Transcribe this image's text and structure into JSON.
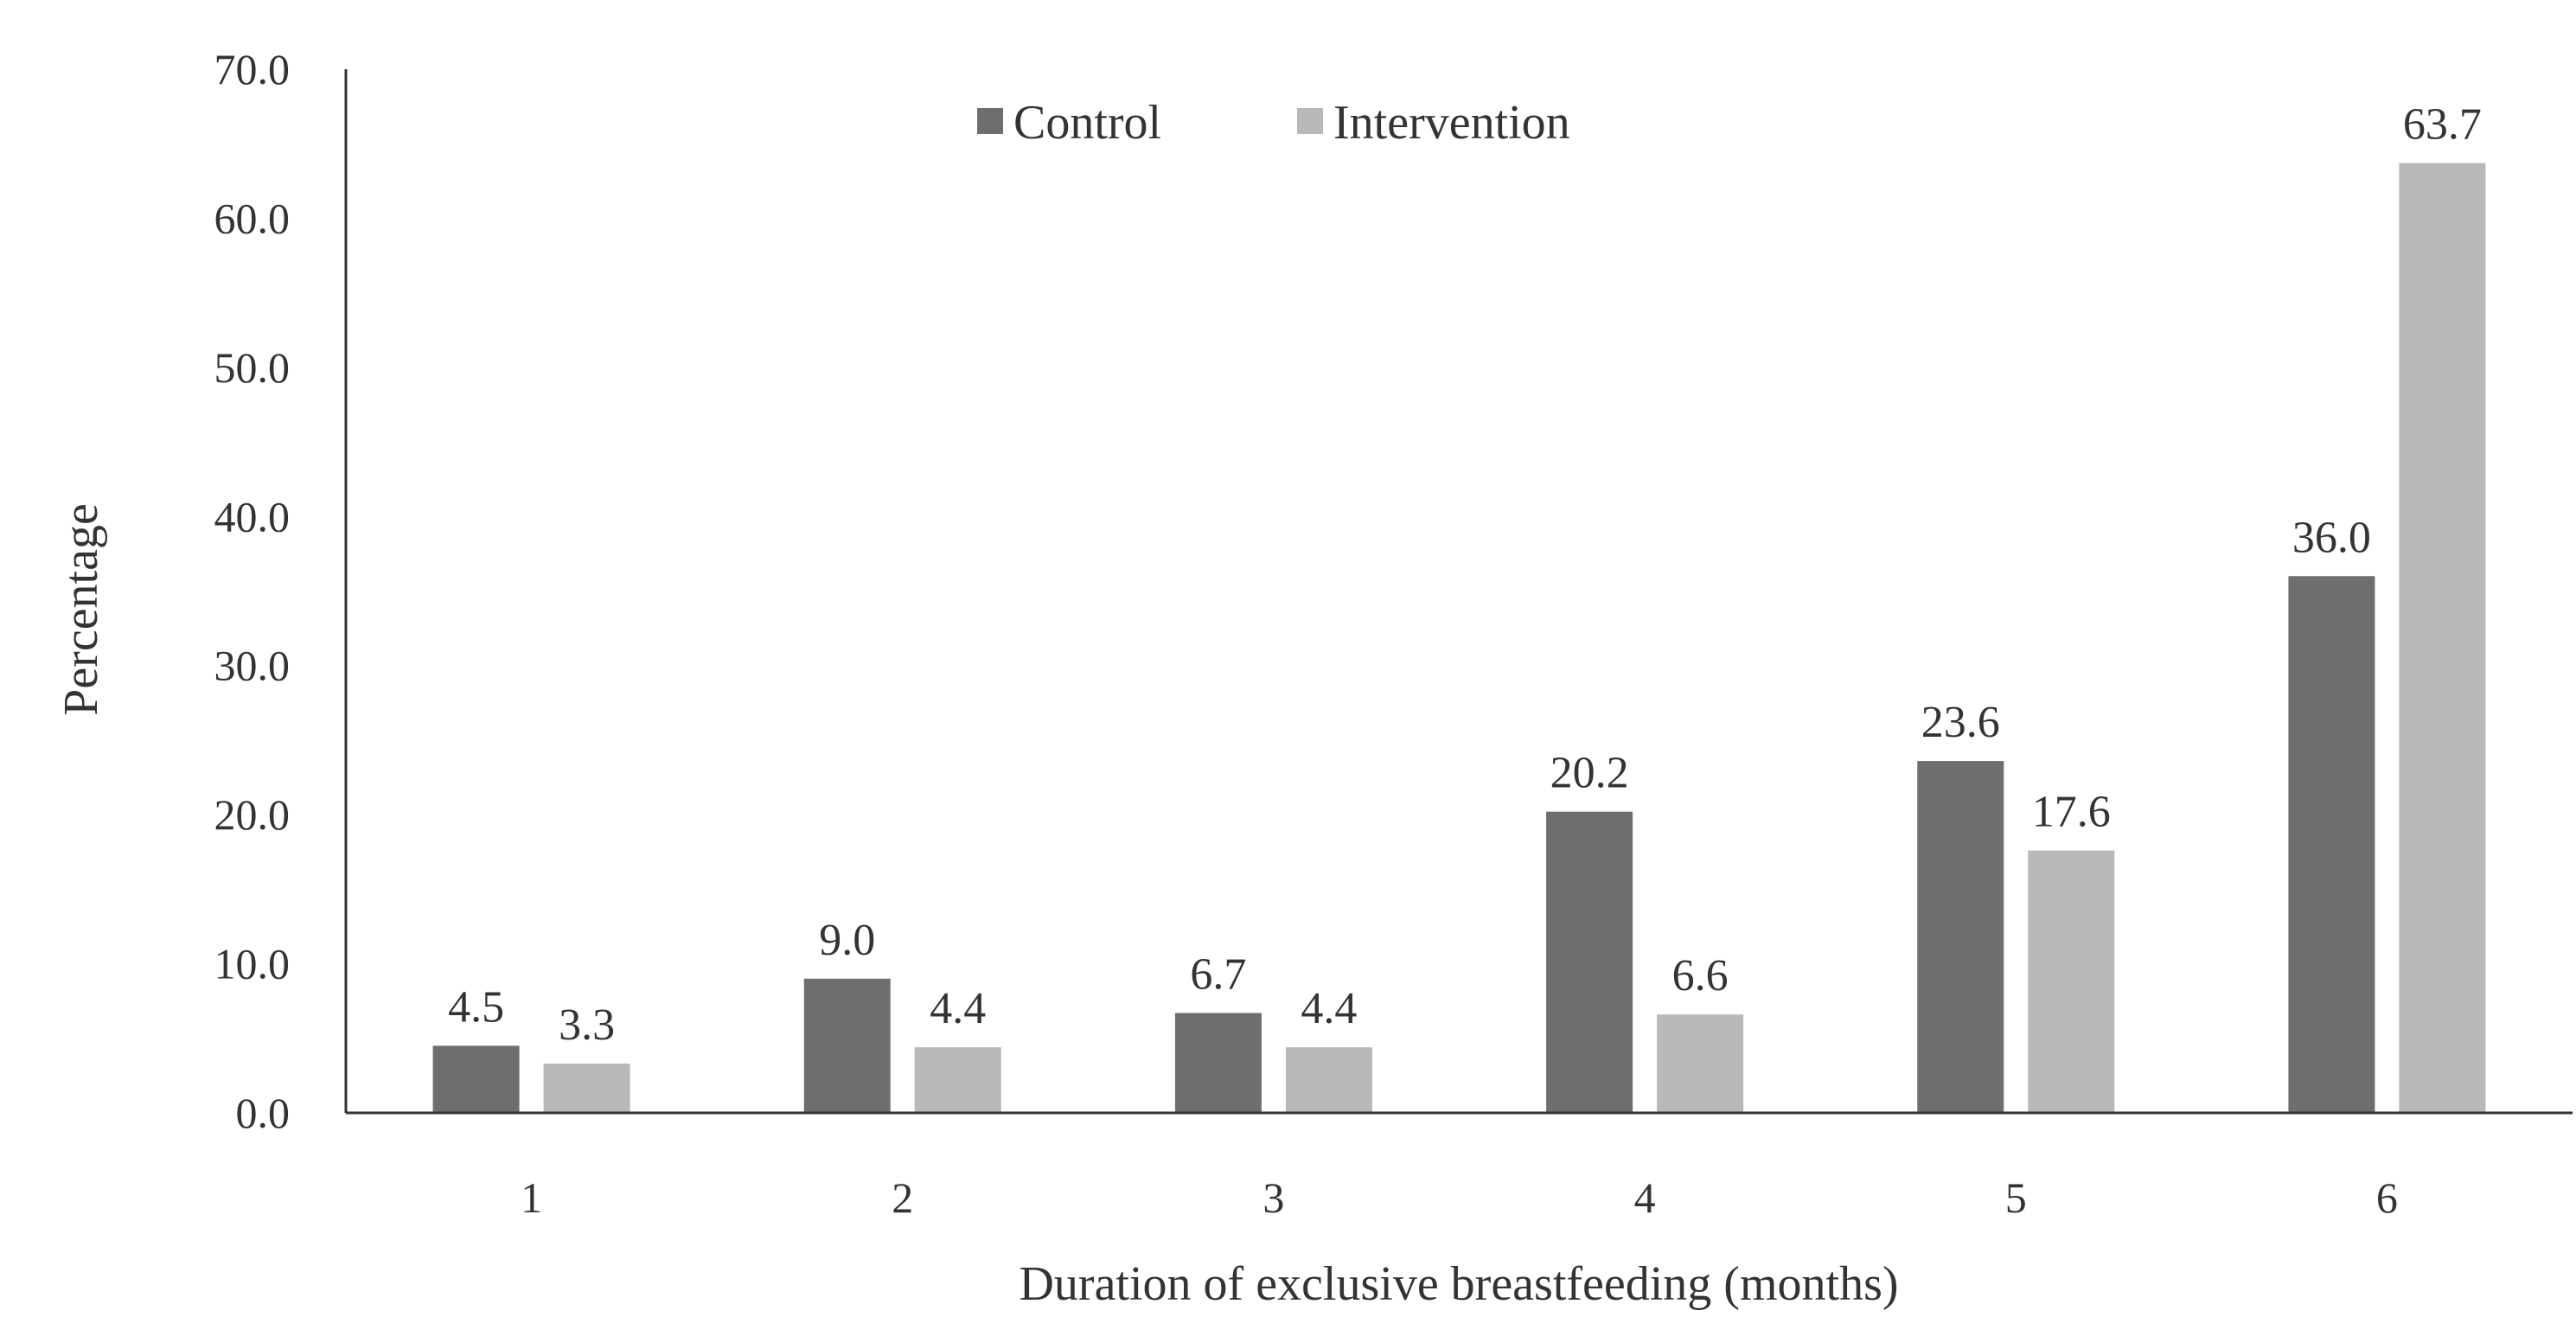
{
  "chart_data": {
    "type": "bar",
    "title": "",
    "xlabel": "Duration of exclusive breastfeeding (months)",
    "ylabel": "Percentage",
    "categories": [
      "1",
      "2",
      "3",
      "4",
      "5",
      "6"
    ],
    "series": [
      {
        "name": "Control",
        "color": "#6e6e6e",
        "values": [
          4.5,
          9.0,
          6.7,
          20.2,
          23.6,
          36.0
        ],
        "labels": [
          "4.5",
          "9.0",
          "6.7",
          "20.2",
          "23.6",
          "36.0"
        ]
      },
      {
        "name": "Intervention",
        "color": "#b8b8b8",
        "values": [
          3.3,
          4.4,
          4.4,
          6.6,
          17.6,
          63.7
        ],
        "labels": [
          "3.3",
          "4.4",
          "4.4",
          "6.6",
          "17.6",
          "63.7"
        ]
      }
    ],
    "ylim": [
      0,
      70
    ],
    "yticks": [
      0,
      10,
      20,
      30,
      40,
      50,
      60,
      70
    ],
    "ytick_labels": [
      "0.0",
      "10.0",
      "20.0",
      "30.0",
      "40.0",
      "50.0",
      "60.0",
      "70.0"
    ],
    "grid": false,
    "legend": "top-center"
  }
}
